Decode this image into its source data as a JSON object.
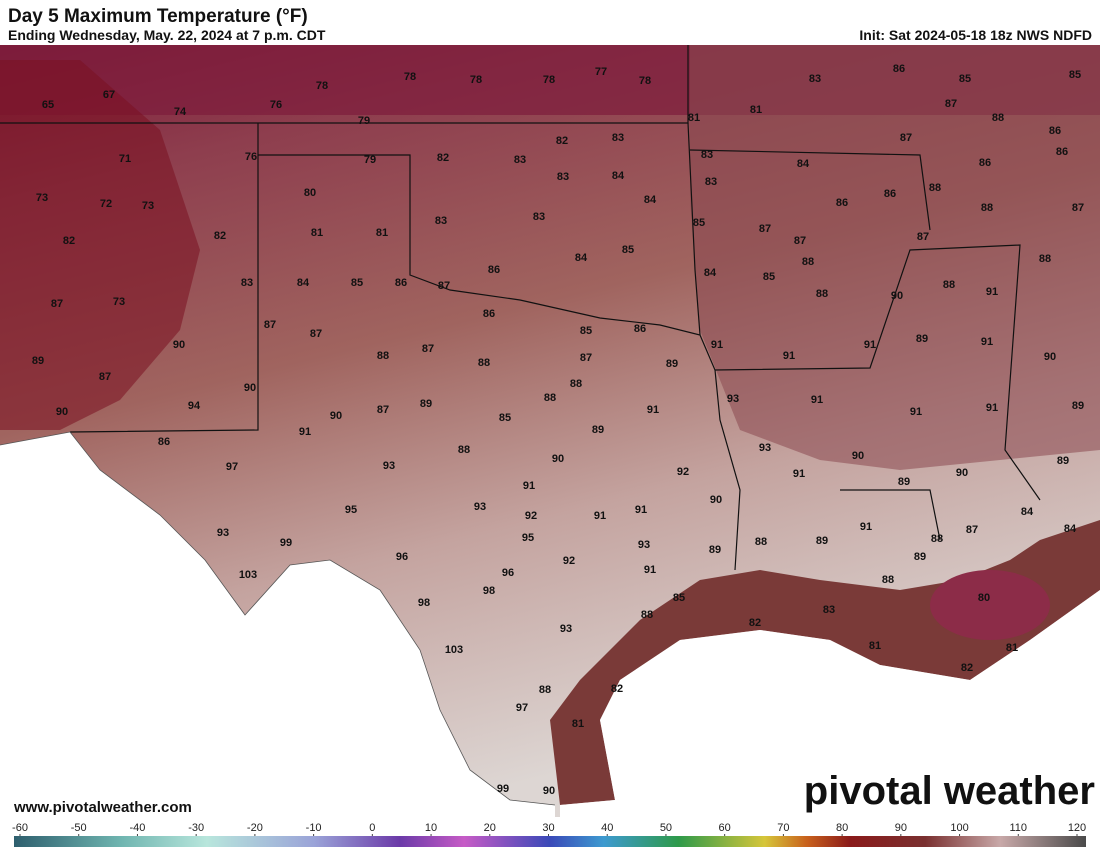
{
  "header": {
    "title": "Day 5 Maximum Temperature (°F)",
    "subtitle": "Ending Wednesday, May. 22, 2024 at 7 p.m. CDT",
    "init": "Init: Sat 2024-05-18 18z NWS NDFD"
  },
  "footer": {
    "website": "www.pivotalweather.com",
    "logo": "pivotal weather"
  },
  "colorbar": {
    "ticks": [
      -60,
      -50,
      -40,
      -30,
      -20,
      -10,
      0,
      10,
      20,
      30,
      40,
      50,
      60,
      70,
      80,
      90,
      100,
      110,
      120
    ]
  },
  "map": {
    "labels": [
      65,
      67,
      74,
      76,
      78,
      78,
      78,
      78,
      77,
      78,
      83,
      86,
      85,
      85,
      79,
      81,
      81,
      87,
      88,
      86,
      71,
      76,
      79,
      82,
      83,
      82,
      83,
      83,
      84,
      87,
      86,
      86,
      73,
      72,
      73,
      80,
      83,
      84,
      83,
      84,
      86,
      86,
      88,
      88,
      87,
      82,
      82,
      81,
      81,
      83,
      83,
      84,
      85,
      85,
      87,
      87,
      87,
      88,
      86,
      84,
      85,
      88,
      88,
      90,
      88,
      91,
      83,
      84,
      85,
      86,
      87,
      73,
      87,
      90,
      86,
      85,
      86,
      91,
      91,
      91,
      89,
      91,
      90,
      87,
      87,
      88,
      87,
      88,
      87,
      89,
      89,
      87,
      90,
      94,
      88,
      88,
      93,
      91,
      91,
      91,
      89,
      90,
      90,
      87,
      89,
      85,
      91,
      91,
      86,
      88,
      89,
      93,
      90,
      97,
      93,
      90,
      92,
      91,
      89,
      90,
      89,
      91,
      90,
      95,
      93,
      92,
      91,
      91,
      84,
      84,
      91,
      93,
      99,
      95,
      93,
      88,
      89,
      88,
      87,
      89,
      96,
      92,
      89,
      103,
      96,
      91,
      88,
      85,
      98,
      98,
      83,
      80,
      88,
      82,
      93,
      81,
      81,
      103,
      82,
      88,
      82,
      97,
      81,
      99,
      90
    ]
  }
}
